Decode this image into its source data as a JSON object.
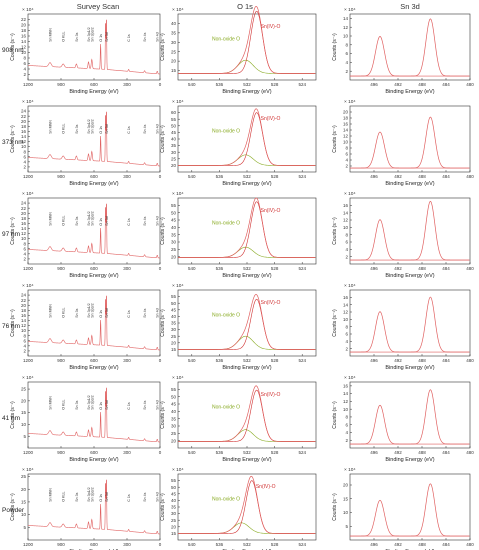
{
  "column_titles": [
    "Survey Scan",
    "O 1s",
    "Sn 3d"
  ],
  "row_labels": [
    "908 nm",
    "373 nm",
    "97 nm",
    "76 nm",
    "41 nm",
    "Powder"
  ],
  "common": {
    "xlabel": "Binding Energy (eV)",
    "ylabel": "Counts (s⁻¹)",
    "multiplier": "× 10⁴",
    "colors": {
      "curve": "#e06060",
      "component_sn": "#d03030",
      "component_non": "#88aa22",
      "axis": "#333333"
    }
  },
  "chart_data": [
    {
      "type": "line",
      "panel": "survey",
      "row": "908 nm",
      "xlim": [
        1200,
        0
      ],
      "xticks": [
        1200,
        900,
        600,
        300,
        0
      ],
      "ylim": [
        0,
        24
      ],
      "yticks": [
        2,
        4,
        6,
        8,
        10,
        12,
        14,
        16,
        18,
        20,
        22
      ],
      "labels": [
        {
          "x": 1000,
          "text": "Sn MNN"
        },
        {
          "x": 880,
          "text": "O KLL"
        },
        {
          "x": 760,
          "text": "Sn 3s"
        },
        {
          "x": 650,
          "text": "Sn 3p1/2"
        },
        {
          "x": 620,
          "text": "Sn 3p3/2"
        },
        {
          "x": 540,
          "text": "O 1s"
        },
        {
          "x": 487,
          "text": "Sn 3d"
        },
        {
          "x": 285,
          "text": "C 1s"
        },
        {
          "x": 140,
          "text": "Sn 4s"
        },
        {
          "x": 25,
          "text": "Sn 4d"
        }
      ]
    },
    {
      "type": "line",
      "panel": "survey",
      "row": "373 nm",
      "xlim": [
        1200,
        0
      ],
      "xticks": [
        1200,
        900,
        600,
        300,
        0
      ],
      "ylim": [
        0,
        26
      ],
      "yticks": [
        2,
        4,
        6,
        8,
        10,
        12,
        14,
        16,
        18,
        20,
        22,
        24
      ],
      "labels": [
        {
          "x": 1000,
          "text": "Sn MNN"
        },
        {
          "x": 880,
          "text": "O KLL"
        },
        {
          "x": 760,
          "text": "Sn 3s"
        },
        {
          "x": 650,
          "text": "Sn 3p1/2"
        },
        {
          "x": 620,
          "text": "Sn 3p3/2"
        },
        {
          "x": 540,
          "text": "O 1s"
        },
        {
          "x": 487,
          "text": "Sn 3d"
        },
        {
          "x": 285,
          "text": "C 1s"
        },
        {
          "x": 140,
          "text": "Sn 4s"
        },
        {
          "x": 25,
          "text": "Sn 4d"
        }
      ]
    },
    {
      "type": "line",
      "panel": "survey",
      "row": "97 nm",
      "xlim": [
        1200,
        0
      ],
      "xticks": [
        1200,
        900,
        600,
        300,
        0
      ],
      "ylim": [
        0,
        26
      ],
      "yticks": [
        2,
        4,
        6,
        8,
        10,
        12,
        14,
        16,
        18,
        20,
        22,
        24
      ],
      "labels": [
        {
          "x": 1000,
          "text": "Sn MNN"
        },
        {
          "x": 880,
          "text": "O KLL"
        },
        {
          "x": 760,
          "text": "Sn 3s"
        },
        {
          "x": 650,
          "text": "Sn 3p1/2"
        },
        {
          "x": 620,
          "text": "Sn 3p3/2"
        },
        {
          "x": 540,
          "text": "O 1s"
        },
        {
          "x": 487,
          "text": "Sn 3d"
        },
        {
          "x": 285,
          "text": "C 1s"
        },
        {
          "x": 140,
          "text": "Sn 4s"
        },
        {
          "x": 25,
          "text": "Sn 4d"
        }
      ]
    },
    {
      "type": "line",
      "panel": "survey",
      "row": "76 nm",
      "xlim": [
        1200,
        0
      ],
      "xticks": [
        1200,
        900,
        600,
        300,
        0
      ],
      "ylim": [
        0,
        26
      ],
      "yticks": [
        2,
        4,
        6,
        8,
        10,
        12,
        14,
        16,
        18,
        20,
        22,
        24
      ],
      "labels": [
        {
          "x": 1000,
          "text": "Sn MNN"
        },
        {
          "x": 880,
          "text": "O KLL"
        },
        {
          "x": 760,
          "text": "Sn 3s"
        },
        {
          "x": 650,
          "text": "Sn 3p1/2"
        },
        {
          "x": 620,
          "text": "Sn 3p3/2"
        },
        {
          "x": 540,
          "text": "O 1s"
        },
        {
          "x": 487,
          "text": "Sn 3d"
        },
        {
          "x": 285,
          "text": "C 1s"
        },
        {
          "x": 140,
          "text": "Sn 4s"
        },
        {
          "x": 25,
          "text": "Sn 4d"
        }
      ]
    },
    {
      "type": "line",
      "panel": "survey",
      "row": "41 nm",
      "xlim": [
        1200,
        0
      ],
      "xticks": [
        1200,
        900,
        600,
        300,
        0
      ],
      "ylim": [
        0,
        28
      ],
      "yticks": [
        5,
        10,
        15,
        20,
        25
      ],
      "labels": [
        {
          "x": 1000,
          "text": "Sn MNN"
        },
        {
          "x": 880,
          "text": "O KLL"
        },
        {
          "x": 760,
          "text": "Sn 3s"
        },
        {
          "x": 650,
          "text": "Sn 3p1/2"
        },
        {
          "x": 620,
          "text": "Sn 3p3/2"
        },
        {
          "x": 540,
          "text": "O 1s"
        },
        {
          "x": 487,
          "text": "Sn 3d"
        },
        {
          "x": 285,
          "text": "C 1s"
        },
        {
          "x": 140,
          "text": "Sn 4s"
        },
        {
          "x": 25,
          "text": "Sn 4d"
        }
      ]
    },
    {
      "type": "line",
      "panel": "survey",
      "row": "Powder",
      "xlim": [
        1200,
        0
      ],
      "xticks": [
        1200,
        900,
        600,
        300,
        0
      ],
      "ylim": [
        0,
        26
      ],
      "yticks": [
        5,
        10,
        15,
        20,
        25
      ],
      "labels": [
        {
          "x": 1000,
          "text": "Sn MNN"
        },
        {
          "x": 880,
          "text": "O KLL"
        },
        {
          "x": 760,
          "text": "Sn 3s"
        },
        {
          "x": 650,
          "text": "Sn 3p1/2"
        },
        {
          "x": 620,
          "text": "Sn 3p3/2"
        },
        {
          "x": 540,
          "text": "O 1s"
        },
        {
          "x": 487,
          "text": "Sn 3d"
        },
        {
          "x": 285,
          "text": "C 1s"
        },
        {
          "x": 140,
          "text": "Sn 4s"
        },
        {
          "x": 25,
          "text": "Sn 4d"
        }
      ]
    },
    {
      "type": "line",
      "panel": "o1s",
      "row": "908 nm",
      "xlim": [
        542,
        522
      ],
      "xticks": [
        540,
        536,
        532,
        528,
        524
      ],
      "ylim": [
        10,
        45
      ],
      "yticks": [
        15,
        20,
        25,
        30,
        35,
        40
      ],
      "main_peak": {
        "x": 530.6,
        "height": 33
      },
      "minor_peak": {
        "x": 532.2,
        "height": 7
      },
      "label_main": "Sn(IV)-O",
      "label_minor": "Non-oxide O"
    },
    {
      "type": "line",
      "panel": "o1s",
      "row": "373 nm",
      "xlim": [
        542,
        522
      ],
      "xticks": [
        540,
        536,
        532,
        528,
        524
      ],
      "ylim": [
        15,
        65
      ],
      "yticks": [
        20,
        25,
        30,
        35,
        40,
        45,
        50,
        55,
        60
      ],
      "main_peak": {
        "x": 530.6,
        "height": 40
      },
      "minor_peak": {
        "x": 532.2,
        "height": 8
      },
      "label_main": "Sn(IV)-O",
      "label_minor": "Non-oxide O"
    },
    {
      "type": "line",
      "panel": "o1s",
      "row": "97 nm",
      "xlim": [
        542,
        522
      ],
      "xticks": [
        540,
        536,
        532,
        528,
        524
      ],
      "ylim": [
        15,
        60
      ],
      "yticks": [
        20,
        25,
        30,
        35,
        40,
        45,
        50,
        55
      ],
      "main_peak": {
        "x": 530.6,
        "height": 38
      },
      "minor_peak": {
        "x": 532.2,
        "height": 7
      },
      "label_main": "Sn(IV)-O",
      "label_minor": "Non-oxide O"
    },
    {
      "type": "line",
      "panel": "o1s",
      "row": "76 nm",
      "xlim": [
        542,
        522
      ],
      "xticks": [
        540,
        536,
        532,
        528,
        524
      ],
      "ylim": [
        10,
        60
      ],
      "yticks": [
        15,
        20,
        25,
        30,
        35,
        40,
        45,
        50,
        55
      ],
      "main_peak": {
        "x": 530.6,
        "height": 38
      },
      "minor_peak": {
        "x": 532.2,
        "height": 10
      },
      "label_main": "Sn(IV)-O",
      "label_minor": "Non-oxide O"
    },
    {
      "type": "line",
      "panel": "o1s",
      "row": "41 nm",
      "xlim": [
        542,
        522
      ],
      "xticks": [
        540,
        536,
        532,
        528,
        524
      ],
      "ylim": [
        15,
        60
      ],
      "yticks": [
        20,
        25,
        30,
        35,
        40,
        45,
        50,
        55
      ],
      "main_peak": {
        "x": 530.6,
        "height": 35
      },
      "minor_peak": {
        "x": 532.2,
        "height": 8
      },
      "label_main": "Sn(IV)-O",
      "label_minor": "Non-oxide O"
    },
    {
      "type": "line",
      "panel": "o1s",
      "row": "Powder",
      "xlim": [
        542,
        522
      ],
      "xticks": [
        540,
        536,
        532,
        528,
        524
      ],
      "ylim": [
        10,
        60
      ],
      "yticks": [
        15,
        20,
        25,
        30,
        35,
        40,
        45,
        50,
        55
      ],
      "main_peak": {
        "x": 531.3,
        "height": 40
      },
      "minor_peak": {
        "x": 532.8,
        "height": 8
      },
      "label_main": "Sn(IV)-O",
      "label_minor": "Non-oxide O"
    },
    {
      "type": "line",
      "panel": "sn3d",
      "row": "908 nm",
      "xlim": [
        500,
        480
      ],
      "xticks": [
        496,
        492,
        488,
        484,
        480
      ],
      "ylim": [
        0,
        15
      ],
      "yticks": [
        2,
        4,
        6,
        8,
        10,
        12,
        14
      ],
      "peaks": [
        {
          "x": 495.0,
          "height": 9
        },
        {
          "x": 486.6,
          "height": 13
        }
      ]
    },
    {
      "type": "line",
      "panel": "sn3d",
      "row": "373 nm",
      "xlim": [
        500,
        480
      ],
      "xticks": [
        496,
        492,
        488,
        484,
        480
      ],
      "ylim": [
        0,
        22
      ],
      "yticks": [
        2,
        4,
        6,
        8,
        10,
        12,
        14,
        16,
        18,
        20
      ],
      "peaks": [
        {
          "x": 495.0,
          "height": 12
        },
        {
          "x": 486.6,
          "height": 17
        }
      ]
    },
    {
      "type": "line",
      "panel": "sn3d",
      "row": "97 nm",
      "xlim": [
        500,
        480
      ],
      "xticks": [
        496,
        492,
        488,
        484,
        480
      ],
      "ylim": [
        0,
        18
      ],
      "yticks": [
        2,
        4,
        6,
        8,
        10,
        12,
        14,
        16
      ],
      "peaks": [
        {
          "x": 495.0,
          "height": 11
        },
        {
          "x": 486.6,
          "height": 16
        }
      ]
    },
    {
      "type": "line",
      "panel": "sn3d",
      "row": "76 nm",
      "xlim": [
        500,
        480
      ],
      "xticks": [
        496,
        492,
        488,
        484,
        480
      ],
      "ylim": [
        0,
        18
      ],
      "yticks": [
        2,
        4,
        6,
        8,
        10,
        12,
        14,
        16
      ],
      "peaks": [
        {
          "x": 495.0,
          "height": 11
        },
        {
          "x": 486.6,
          "height": 15
        }
      ]
    },
    {
      "type": "line",
      "panel": "sn3d",
      "row": "41 nm",
      "xlim": [
        500,
        480
      ],
      "xticks": [
        496,
        492,
        488,
        484,
        480
      ],
      "ylim": [
        0,
        17
      ],
      "yticks": [
        2,
        4,
        6,
        8,
        10,
        12,
        14,
        16
      ],
      "peaks": [
        {
          "x": 495.0,
          "height": 10
        },
        {
          "x": 486.6,
          "height": 14
        }
      ]
    },
    {
      "type": "line",
      "panel": "sn3d",
      "row": "Powder",
      "xlim": [
        500,
        480
      ],
      "xticks": [
        496,
        492,
        488,
        484,
        480
      ],
      "ylim": [
        0,
        24
      ],
      "yticks": [
        5,
        10,
        15,
        20
      ],
      "peaks": [
        {
          "x": 495.0,
          "height": 13
        },
        {
          "x": 486.6,
          "height": 19
        }
      ]
    }
  ]
}
